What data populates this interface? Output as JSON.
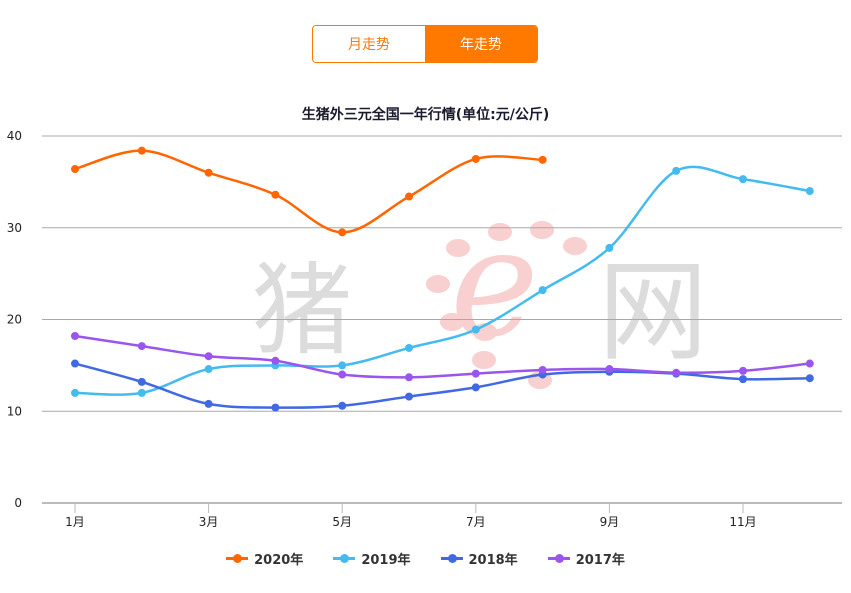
{
  "toggle": {
    "monthly_label": "月走势",
    "yearly_label": "年走势",
    "active": "yearly",
    "accent_color": "#ff7800"
  },
  "watermark": {
    "left_text": "猪",
    "center_glyph": "e",
    "right_text": "网"
  },
  "chart_data": {
    "type": "line",
    "title": "生猪外三元全国一年行情(单位:元/公斤)",
    "xlabel": "",
    "ylabel": "",
    "ylim": [
      0,
      40
    ],
    "yticks": [
      0,
      10,
      20,
      30,
      40
    ],
    "grid": true,
    "legend_position": "bottom",
    "categories": [
      "1月",
      "2月",
      "3月",
      "4月",
      "5月",
      "6月",
      "7月",
      "8月",
      "9月",
      "10月",
      "11月",
      "12月"
    ],
    "xtick_labels": [
      "1月",
      "3月",
      "5月",
      "7月",
      "9月",
      "11月"
    ],
    "series": [
      {
        "name": "2020年",
        "color": "#ff6600",
        "values": [
          36.4,
          38.4,
          36.0,
          33.6,
          29.5,
          33.4,
          37.5,
          37.4,
          null,
          null,
          null,
          null
        ]
      },
      {
        "name": "2019年",
        "color": "#44bbee",
        "values": [
          12.0,
          12.0,
          14.6,
          15.0,
          15.0,
          16.9,
          18.9,
          23.2,
          27.8,
          36.2,
          35.3,
          34.0
        ]
      },
      {
        "name": "2018年",
        "color": "#4169e1",
        "values": [
          15.2,
          13.2,
          10.8,
          10.4,
          10.6,
          11.6,
          12.6,
          14.0,
          14.3,
          14.1,
          13.5,
          13.6
        ]
      },
      {
        "name": "2017年",
        "color": "#9955ee",
        "values": [
          18.2,
          17.1,
          16.0,
          15.5,
          14.0,
          13.7,
          14.1,
          14.5,
          14.6,
          14.2,
          14.4,
          15.2
        ]
      }
    ]
  }
}
